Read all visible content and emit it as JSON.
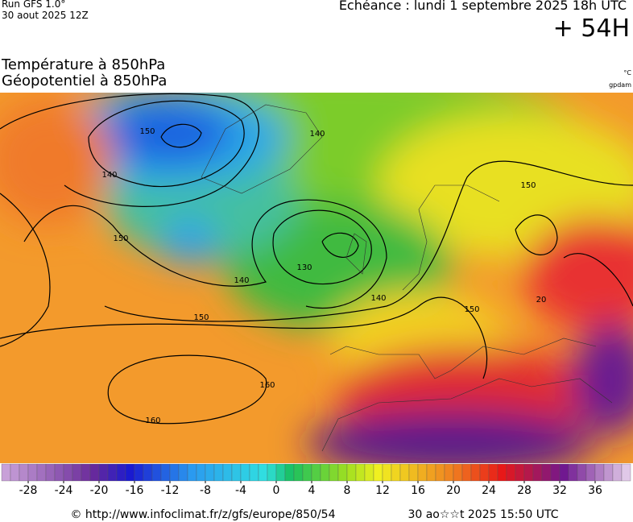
{
  "header": {
    "run": "Run GFS 1.0°",
    "run_date": "30 aout 2025 12Z",
    "valid": "Echéance : lundi 1 septembre 2025 18h UTC",
    "lead": "+ 54H"
  },
  "titles": {
    "temperature": "Température à 850hPa",
    "geopotential": "Géopotentiel à 850hPa",
    "temperature_unit": "°C",
    "geopotential_unit": "gpdam"
  },
  "map": {
    "contour_labels": [
      "150",
      "140",
      "140",
      "150",
      "140",
      "130",
      "140",
      "150",
      "150",
      "160",
      "160",
      "150",
      "20"
    ]
  },
  "colorbar": {
    "ticks": [
      -28,
      -24,
      -20,
      -16,
      -12,
      -8,
      -4,
      0,
      4,
      8,
      12,
      16,
      20,
      24,
      28,
      32,
      36
    ]
  },
  "footer": {
    "source": "© http://www.infoclimat.fr/z/gfs/europe/850/54",
    "generated": "30 ao☆☆t 2025 15:50 UTC"
  }
}
